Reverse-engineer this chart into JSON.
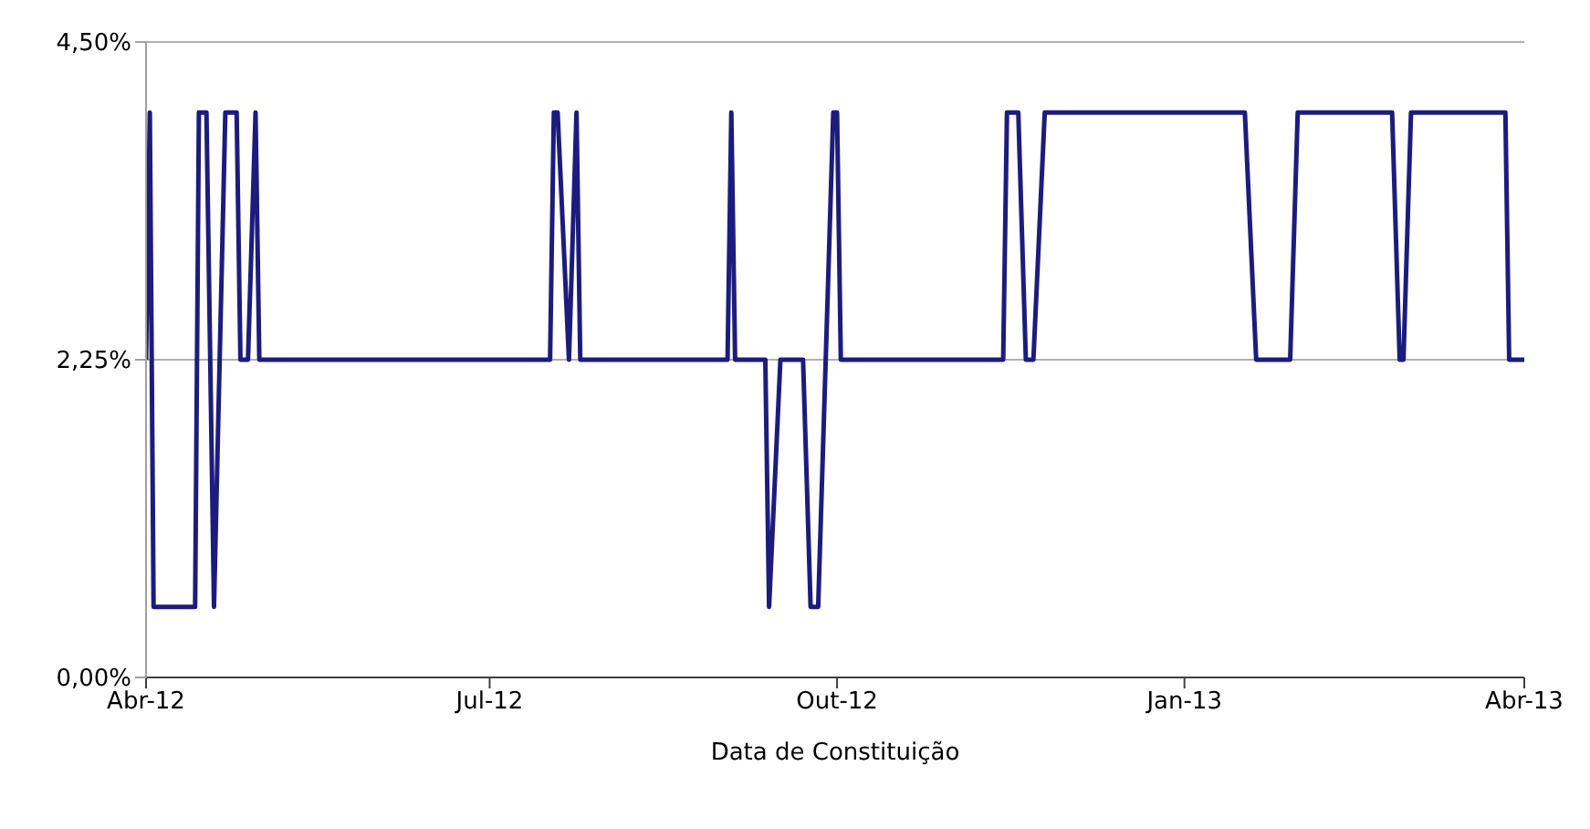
{
  "chart_data": {
    "type": "line",
    "xlabel": "Data de Constituição",
    "marker": "none",
    "line_style": "solid",
    "grid": "y",
    "xlim": [
      "2012-04-01",
      "2013-04-01"
    ],
    "xticks": [
      {
        "value": "2012-04-01",
        "label": "Abr-12"
      },
      {
        "value": "2012-07-01",
        "label": "Jul-12"
      },
      {
        "value": "2012-10-01",
        "label": "Out-12"
      },
      {
        "value": "2013-01-01",
        "label": "Jan-13"
      },
      {
        "value": "2013-04-01",
        "label": "Abr-13"
      }
    ],
    "ylim": [
      0,
      4.5
    ],
    "yticks": [
      {
        "value": 0,
        "label": "0,00%"
      },
      {
        "value": 2.25,
        "label": "2,25%"
      },
      {
        "value": 4.5,
        "label": "4,50%"
      }
    ],
    "x": [
      "2012-04-01",
      "2012-04-02",
      "2012-04-03",
      "2012-04-14",
      "2012-04-15",
      "2012-04-17",
      "2012-04-19",
      "2012-04-22",
      "2012-04-25",
      "2012-04-26",
      "2012-04-28",
      "2012-04-30",
      "2012-05-01",
      "2012-07-17",
      "2012-07-18",
      "2012-07-19",
      "2012-07-22",
      "2012-07-24",
      "2012-07-25",
      "2012-09-02",
      "2012-09-03",
      "2012-09-04",
      "2012-09-12",
      "2012-09-13",
      "2012-09-16",
      "2012-09-22",
      "2012-09-24",
      "2012-09-26",
      "2012-09-30",
      "2012-10-01",
      "2012-10-02",
      "2012-11-14",
      "2012-11-15",
      "2012-11-18",
      "2012-11-20",
      "2012-11-22",
      "2012-11-25",
      "2013-01-17",
      "2013-01-20",
      "2013-01-29",
      "2013-01-31",
      "2013-02-25",
      "2013-02-27",
      "2013-02-28",
      "2013-03-02",
      "2013-03-27",
      "2013-03-28",
      "2013-04-01"
    ],
    "series": [
      {
        "color": "#1c1c7e",
        "values": [
          2.25,
          4,
          0.5,
          0.5,
          4,
          4,
          0.5,
          4,
          4,
          2.25,
          2.25,
          4,
          2.25,
          2.25,
          4,
          4,
          2.25,
          4,
          2.25,
          2.25,
          4,
          2.25,
          2.25,
          0.5,
          2.25,
          2.25,
          0.5,
          0.5,
          4,
          4,
          2.25,
          2.25,
          4,
          4,
          2.25,
          2.25,
          4,
          4,
          2.25,
          2.25,
          4,
          4,
          2.25,
          2.25,
          4,
          4,
          2.25,
          2.25
        ]
      }
    ]
  }
}
